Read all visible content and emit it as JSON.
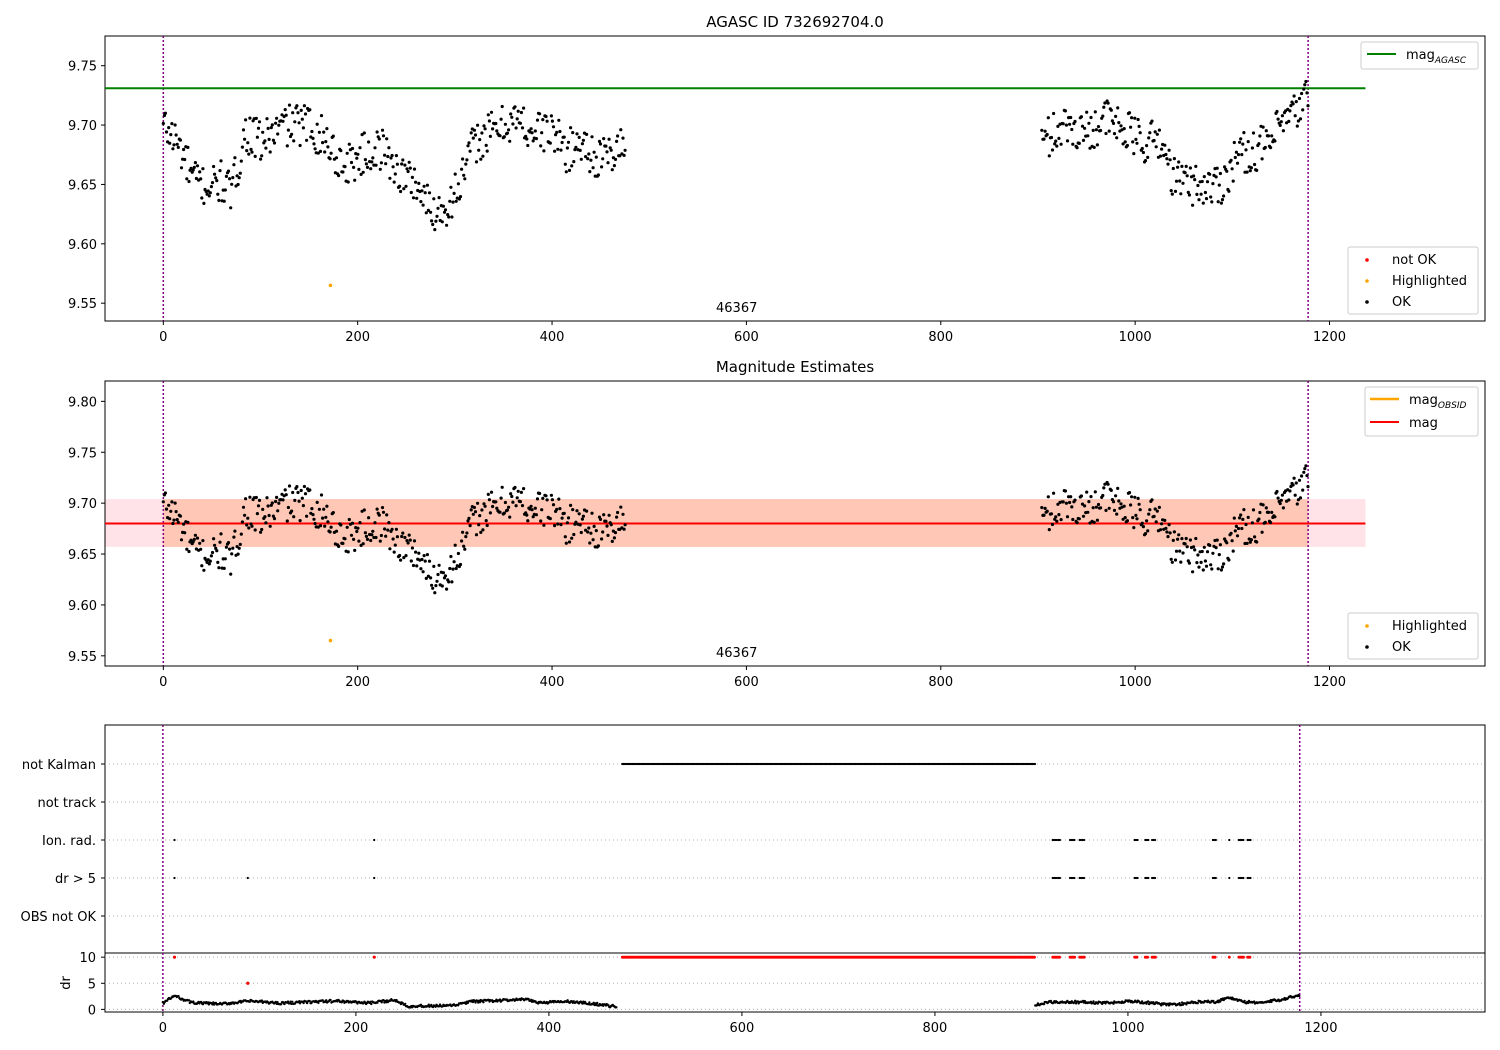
{
  "colors": {
    "ok": "#000000",
    "not_ok": "#ff0000",
    "highlighted": "#ffa500",
    "mag_agasc": "#008000",
    "mag_obsid": "#ffa500",
    "mag": "#ff0000",
    "band_fill": "#ffb08a",
    "band_fill_outer": "#ffc0cb",
    "vline": "#800080",
    "grid": "#b0b0b0"
  },
  "chart_data": [
    {
      "type": "scatter",
      "title": "AGASC ID 732692704.0",
      "xlim": [
        -60,
        1360
      ],
      "ylim": [
        9.535,
        9.775
      ],
      "xticks": [
        "0",
        "200",
        "400",
        "600",
        "800",
        "1000",
        "1200"
      ],
      "yticks": [
        "9.55",
        "9.60",
        "9.65",
        "9.70",
        "9.75"
      ],
      "vlines_x": [
        0,
        1178
      ],
      "obsid_label": "46367",
      "obsid_label_x": 590,
      "hline": {
        "name": "mag",
        "sub": "AGASC",
        "y": 9.731,
        "x": [
          -60,
          1237
        ]
      },
      "legend_top": [
        {
          "name": "mag",
          "sub": "AGASC"
        }
      ],
      "legend_bottom": [
        "not OK",
        "Highlighted",
        "OK"
      ],
      "highlighted_points": [
        {
          "x": 172,
          "y": 9.565
        }
      ],
      "ok_segments": [
        {
          "x_start": 0,
          "x_end": 476,
          "profile": [
            [
              0,
              9.7
            ],
            [
              15,
              9.685
            ],
            [
              30,
              9.655
            ],
            [
              45,
              9.648
            ],
            [
              60,
              9.652
            ],
            [
              70,
              9.642
            ],
            [
              85,
              9.695
            ],
            [
              100,
              9.685
            ],
            [
              125,
              9.7
            ],
            [
              150,
              9.7
            ],
            [
              170,
              9.685
            ],
            [
              185,
              9.665
            ],
            [
              205,
              9.675
            ],
            [
              225,
              9.68
            ],
            [
              245,
              9.658
            ],
            [
              260,
              9.652
            ],
            [
              275,
              9.628
            ],
            [
              290,
              9.63
            ],
            [
              305,
              9.65
            ],
            [
              320,
              9.685
            ],
            [
              340,
              9.695
            ],
            [
              360,
              9.705
            ],
            [
              380,
              9.695
            ],
            [
              400,
              9.695
            ],
            [
              415,
              9.678
            ],
            [
              430,
              9.685
            ],
            [
              450,
              9.67
            ],
            [
              476,
              9.685
            ]
          ]
        },
        {
          "x_start": 904,
          "x_end": 1178,
          "profile": [
            [
              904,
              9.685
            ],
            [
              925,
              9.7
            ],
            [
              950,
              9.695
            ],
            [
              970,
              9.705
            ],
            [
              990,
              9.695
            ],
            [
              1010,
              9.685
            ],
            [
              1025,
              9.688
            ],
            [
              1040,
              9.655
            ],
            [
              1060,
              9.65
            ],
            [
              1075,
              9.648
            ],
            [
              1090,
              9.652
            ],
            [
              1105,
              9.675
            ],
            [
              1120,
              9.678
            ],
            [
              1140,
              9.685
            ],
            [
              1150,
              9.7
            ],
            [
              1165,
              9.71
            ],
            [
              1178,
              9.725
            ]
          ]
        }
      ]
    },
    {
      "type": "scatter",
      "title": "Magnitude Estimates",
      "xlim": [
        -60,
        1360
      ],
      "ylim": [
        9.54,
        9.82
      ],
      "xticks": [
        "0",
        "200",
        "400",
        "600",
        "800",
        "1000",
        "1200"
      ],
      "yticks": [
        "9.55",
        "9.60",
        "9.65",
        "9.70",
        "9.75",
        "9.80"
      ],
      "vlines_x": [
        0,
        1178
      ],
      "obsid_label": "46367",
      "obsid_label_x": 590,
      "mag_line": {
        "name": "mag",
        "y": 9.68,
        "x": [
          -60,
          1237
        ]
      },
      "mag_band": {
        "y_low": 9.657,
        "y_high": 9.704
      },
      "legend_top": [
        {
          "name": "mag",
          "sub": "OBSID"
        },
        {
          "name": "mag",
          "sub": ""
        }
      ],
      "legend_bottom": [
        "Highlighted",
        "OK"
      ],
      "highlighted_points": [
        {
          "x": 172,
          "y": 9.565
        }
      ]
    },
    {
      "type": "scatter",
      "title": "",
      "xlim": [
        -60,
        1370
      ],
      "xticks": [
        "0",
        "200",
        "400",
        "600",
        "800",
        "1000",
        "1200"
      ],
      "vlines_x": [
        0,
        1178
      ],
      "flag_rows": [
        "not Kalman",
        "not track",
        "Ion. rad.",
        "dr > 5",
        "OBS not OK"
      ],
      "flags": {
        "not Kalman": [
          [
            476,
            904
          ]
        ],
        "not track": [],
        "Ion. rad.": [
          [
            12,
            12
          ],
          [
            219,
            219
          ],
          [
            922,
            930
          ],
          [
            940,
            945
          ],
          [
            950,
            955
          ],
          [
            1007,
            1010
          ],
          [
            1018,
            1021
          ],
          [
            1025,
            1029
          ],
          [
            1088,
            1091
          ],
          [
            1105,
            1106
          ],
          [
            1115,
            1120
          ],
          [
            1124,
            1127
          ]
        ],
        "dr > 5": [
          [
            12,
            12
          ],
          [
            88,
            88
          ],
          [
            219,
            219
          ],
          [
            922,
            930
          ],
          [
            940,
            945
          ],
          [
            950,
            955
          ],
          [
            1007,
            1010
          ],
          [
            1018,
            1021
          ],
          [
            1025,
            1029
          ],
          [
            1088,
            1091
          ],
          [
            1105,
            1106
          ],
          [
            1115,
            1120
          ],
          [
            1124,
            1127
          ]
        ],
        "OBS not OK": []
      },
      "dr_panel": {
        "ylabel": "dr",
        "yticks": [
          "0",
          "5",
          "10"
        ],
        "ylim": [
          -0.5,
          10.8
        ],
        "not_ok_points": [
          [
            12,
            10
          ],
          [
            88,
            5
          ],
          [
            219,
            10
          ]
        ],
        "not_ok_segments": [
          [
            476,
            904
          ],
          [
            922,
            930
          ],
          [
            940,
            945
          ],
          [
            950,
            955
          ],
          [
            1007,
            1010
          ],
          [
            1018,
            1021
          ],
          [
            1025,
            1029
          ],
          [
            1088,
            1091
          ],
          [
            1105,
            1106
          ],
          [
            1115,
            1120
          ],
          [
            1124,
            1127
          ]
        ],
        "ok_segments": [
          {
            "x_start": 0,
            "x_end": 470,
            "profile": [
              [
                0,
                1.2
              ],
              [
                12,
                2.6
              ],
              [
                30,
                1.3
              ],
              [
                60,
                1.0
              ],
              [
                90,
                1.6
              ],
              [
                120,
                1.2
              ],
              [
                150,
                1.4
              ],
              [
                180,
                1.6
              ],
              [
                215,
                1.2
              ],
              [
                240,
                1.8
              ],
              [
                255,
                0.6
              ],
              [
                300,
                0.7
              ],
              [
                320,
                1.5
              ],
              [
                350,
                1.7
              ],
              [
                375,
                1.9
              ],
              [
                390,
                1.3
              ],
              [
                420,
                1.5
              ],
              [
                450,
                1.0
              ],
              [
                470,
                0.5
              ]
            ]
          },
          {
            "x_start": 904,
            "x_end": 1178,
            "profile": [
              [
                904,
                0.8
              ],
              [
                920,
                1.4
              ],
              [
                950,
                1.4
              ],
              [
                980,
                1.2
              ],
              [
                1000,
                1.6
              ],
              [
                1025,
                1.2
              ],
              [
                1040,
                0.9
              ],
              [
                1060,
                1.1
              ],
              [
                1080,
                1.6
              ],
              [
                1090,
                1.4
              ],
              [
                1105,
                2.3
              ],
              [
                1120,
                1.4
              ],
              [
                1140,
                1.3
              ],
              [
                1160,
                1.9
              ],
              [
                1178,
                2.8
              ]
            ]
          }
        ]
      }
    }
  ]
}
